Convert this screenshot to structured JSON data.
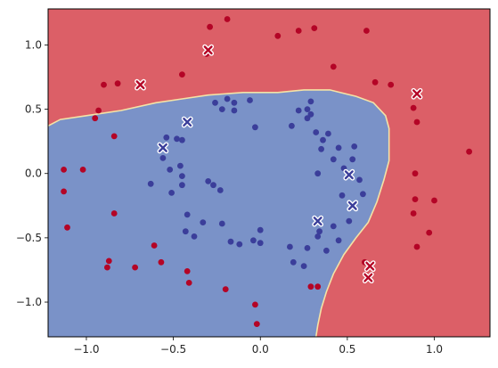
{
  "chart_data": {
    "type": "scatter",
    "title": "",
    "xlabel": "",
    "ylabel": "",
    "xlim": [
      -1.22,
      1.32
    ],
    "ylim": [
      -1.27,
      1.28
    ],
    "xticks": [
      -1.0,
      -0.5,
      0.0,
      0.5,
      1.0
    ],
    "yticks": [
      -1.0,
      -0.5,
      0.0,
      0.5,
      1.0
    ],
    "xtick_labels": [
      "−1.0",
      "−0.5",
      "0.0",
      "0.5",
      "1.0"
    ],
    "ytick_labels": [
      "−1.0",
      "−0.5",
      "0.0",
      "0.5",
      "1.0"
    ],
    "grid": false,
    "legend": null,
    "colors": {
      "red_region": "#dc5f67",
      "blue_region": "#7a92c8",
      "boundary": "#f4e3a6",
      "red_point": "#b40426",
      "blue_point": "#3b3e9a",
      "marker_edge": "#ffffff"
    },
    "decision_boundary": [
      [
        -1.22,
        0.37
      ],
      [
        -1.15,
        0.42
      ],
      [
        -1.0,
        0.45
      ],
      [
        -0.8,
        0.49
      ],
      [
        -0.6,
        0.55
      ],
      [
        -0.45,
        0.58
      ],
      [
        -0.3,
        0.61
      ],
      [
        -0.1,
        0.63
      ],
      [
        0.1,
        0.63
      ],
      [
        0.25,
        0.65
      ],
      [
        0.4,
        0.65
      ],
      [
        0.55,
        0.6
      ],
      [
        0.65,
        0.55
      ],
      [
        0.72,
        0.45
      ],
      [
        0.74,
        0.35
      ],
      [
        0.74,
        0.1
      ],
      [
        0.71,
        -0.05
      ],
      [
        0.67,
        -0.22
      ],
      [
        0.62,
        -0.38
      ],
      [
        0.55,
        -0.5
      ],
      [
        0.48,
        -0.63
      ],
      [
        0.42,
        -0.78
      ],
      [
        0.38,
        -0.92
      ],
      [
        0.35,
        -1.05
      ],
      [
        0.33,
        -1.18
      ],
      [
        0.32,
        -1.27
      ]
    ],
    "series": [
      {
        "class": 0,
        "marker": "circle",
        "points": [
          [
            -0.29,
            1.14
          ],
          [
            -0.19,
            1.2
          ],
          [
            0.1,
            1.07
          ],
          [
            0.22,
            1.11
          ],
          [
            0.31,
            1.13
          ],
          [
            0.42,
            0.83
          ],
          [
            0.61,
            1.11
          ],
          [
            -0.45,
            0.77
          ],
          [
            -0.31,
            0.93
          ],
          [
            -0.9,
            0.69
          ],
          [
            -0.82,
            0.7
          ],
          [
            -0.93,
            0.49
          ],
          [
            -0.95,
            0.43
          ],
          [
            -0.84,
            0.29
          ],
          [
            0.66,
            0.71
          ],
          [
            0.75,
            0.69
          ],
          [
            0.88,
            0.51
          ],
          [
            0.9,
            0.4
          ],
          [
            1.2,
            0.17
          ],
          [
            -1.13,
            0.03
          ],
          [
            -1.02,
            0.03
          ],
          [
            -1.13,
            -0.14
          ],
          [
            -0.84,
            -0.31
          ],
          [
            -1.11,
            -0.42
          ],
          [
            -0.61,
            -0.56
          ],
          [
            -0.87,
            -0.68
          ],
          [
            -0.72,
            -0.73
          ],
          [
            -0.57,
            -0.69
          ],
          [
            -0.88,
            -0.73
          ],
          [
            -0.42,
            -0.76
          ],
          [
            -0.41,
            -0.85
          ],
          [
            -0.2,
            -0.9
          ],
          [
            -0.03,
            -1.02
          ],
          [
            -0.02,
            -1.17
          ],
          [
            0.29,
            -0.88
          ],
          [
            0.33,
            -0.88
          ],
          [
            0.6,
            -0.69
          ],
          [
            0.89,
            0.0
          ],
          [
            0.89,
            -0.2
          ],
          [
            0.88,
            -0.31
          ],
          [
            1.0,
            -0.21
          ],
          [
            0.97,
            -0.46
          ],
          [
            0.9,
            -0.57
          ]
        ]
      },
      {
        "class": 1,
        "marker": "circle",
        "points": [
          [
            -0.26,
            0.55
          ],
          [
            -0.19,
            0.58
          ],
          [
            -0.22,
            0.5
          ],
          [
            -0.15,
            0.55
          ],
          [
            -0.15,
            0.49
          ],
          [
            -0.06,
            0.57
          ],
          [
            -0.03,
            0.36
          ],
          [
            0.18,
            0.37
          ],
          [
            0.22,
            0.49
          ],
          [
            0.27,
            0.5
          ],
          [
            0.29,
            0.56
          ],
          [
            0.27,
            0.43
          ],
          [
            0.29,
            0.46
          ],
          [
            0.32,
            0.32
          ],
          [
            0.36,
            0.26
          ],
          [
            0.39,
            0.31
          ],
          [
            0.45,
            0.2
          ],
          [
            0.54,
            0.21
          ],
          [
            0.35,
            0.19
          ],
          [
            0.33,
            0.0
          ],
          [
            0.42,
            0.11
          ],
          [
            0.53,
            0.11
          ],
          [
            0.48,
            0.04
          ],
          [
            0.47,
            -0.17
          ],
          [
            0.57,
            -0.05
          ],
          [
            0.59,
            -0.16
          ],
          [
            0.33,
            -0.49
          ],
          [
            -0.48,
            0.27
          ],
          [
            -0.45,
            0.26
          ],
          [
            -0.54,
            0.28
          ],
          [
            -0.56,
            0.12
          ],
          [
            -0.52,
            0.03
          ],
          [
            -0.46,
            0.06
          ],
          [
            -0.45,
            -0.02
          ],
          [
            -0.45,
            -0.09
          ],
          [
            -0.63,
            -0.08
          ],
          [
            -0.51,
            -0.15
          ],
          [
            -0.3,
            -0.06
          ],
          [
            -0.27,
            -0.09
          ],
          [
            -0.23,
            -0.13
          ],
          [
            -0.42,
            -0.32
          ],
          [
            -0.43,
            -0.45
          ],
          [
            -0.33,
            -0.38
          ],
          [
            -0.38,
            -0.49
          ],
          [
            -0.22,
            -0.39
          ],
          [
            -0.17,
            -0.53
          ],
          [
            -0.04,
            -0.52
          ],
          [
            0.0,
            -0.44
          ],
          [
            0.0,
            -0.54
          ],
          [
            -0.12,
            -0.55
          ],
          [
            0.17,
            -0.57
          ],
          [
            0.19,
            -0.69
          ],
          [
            0.25,
            -0.72
          ],
          [
            0.34,
            -0.45
          ],
          [
            0.27,
            -0.58
          ],
          [
            0.38,
            -0.6
          ],
          [
            0.45,
            -0.52
          ],
          [
            0.51,
            -0.37
          ],
          [
            0.42,
            -0.41
          ]
        ]
      },
      {
        "class": 0,
        "marker": "x",
        "points": [
          [
            -0.3,
            0.96
          ],
          [
            -0.69,
            0.69
          ],
          [
            0.9,
            0.62
          ],
          [
            0.63,
            -0.72
          ],
          [
            0.62,
            -0.81
          ]
        ]
      },
      {
        "class": 1,
        "marker": "x",
        "points": [
          [
            -0.42,
            0.4
          ],
          [
            -0.56,
            0.2
          ],
          [
            0.51,
            -0.01
          ],
          [
            0.53,
            -0.25
          ],
          [
            0.33,
            -0.37
          ]
        ]
      }
    ]
  }
}
